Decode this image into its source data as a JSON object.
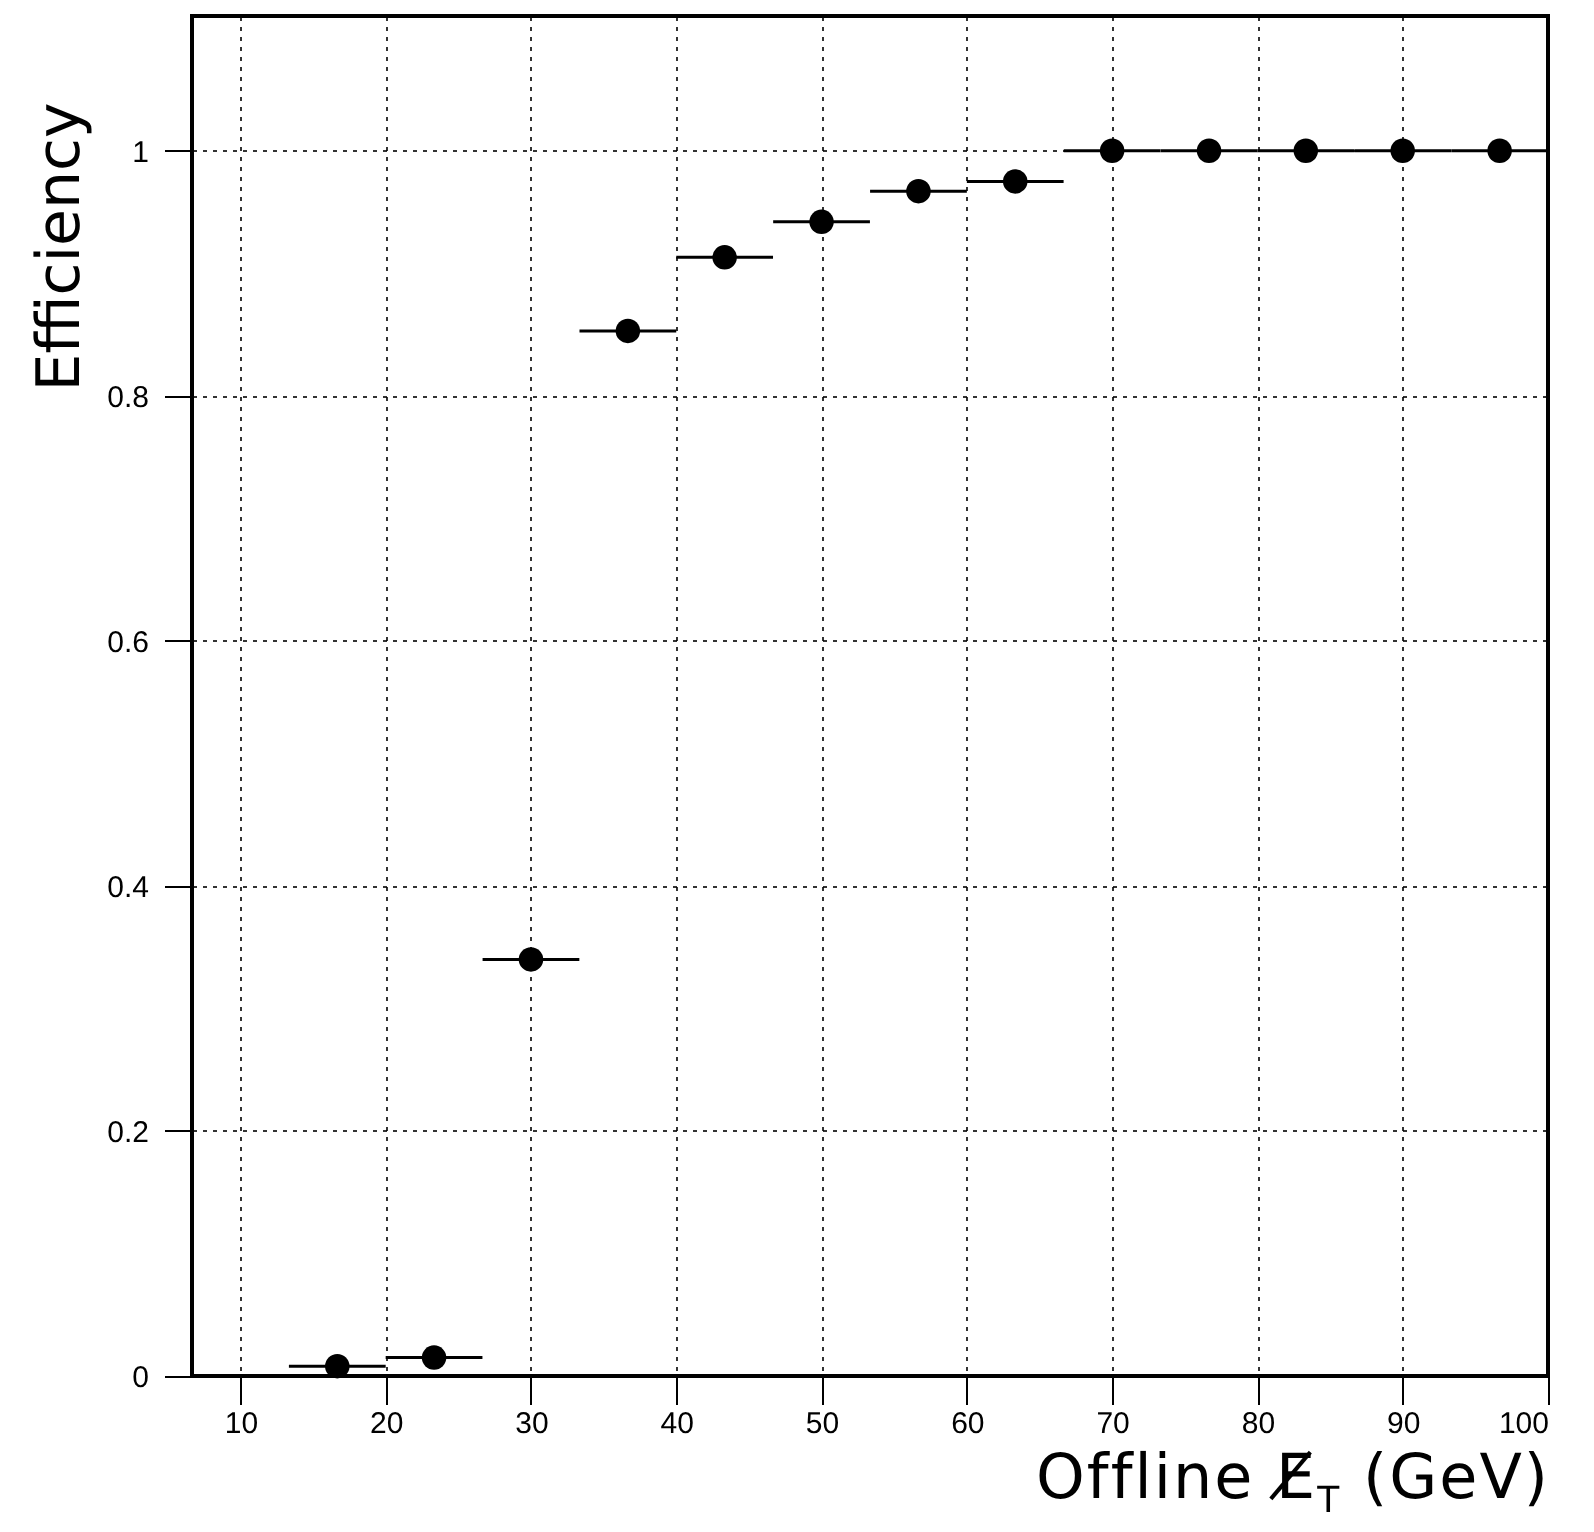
{
  "chart_data": {
    "type": "scatter",
    "xlabel": "Offline E̸$_{T}$ (GeV)",
    "ylabel": "Efficiency",
    "x": [
      16.67,
      23.33,
      30,
      36.67,
      43.33,
      50,
      56.67,
      63.33,
      70,
      76.67,
      83.33,
      90,
      96.67
    ],
    "values": [
      0.008,
      0.015,
      0.34,
      0.853,
      0.913,
      0.942,
      0.967,
      0.975,
      1,
      1,
      1,
      1,
      1
    ],
    "xerrors": [
      3.33,
      3.33,
      3.33,
      3.33,
      3.33,
      3.33,
      3.33,
      3.33,
      3.33,
      3.33,
      3.33,
      3.33,
      3.33
    ],
    "color": "#000000",
    "marker": "circle",
    "grid": true,
    "xlim": [
      6.67,
      100
    ],
    "xticks": [
      10,
      20,
      30,
      40,
      50,
      60,
      70,
      80,
      90,
      100
    ],
    "ylim": [
      0,
      1.11
    ],
    "yticks": [
      0,
      0.2,
      0.4,
      0.6,
      0.8,
      1
    ]
  }
}
